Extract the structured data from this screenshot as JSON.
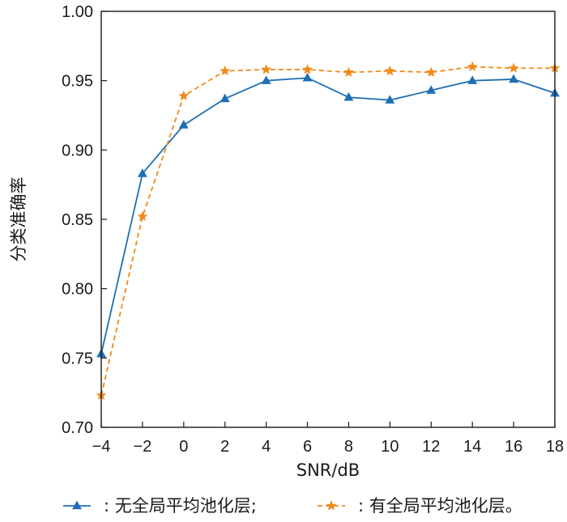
{
  "chart_data": {
    "type": "line",
    "xlabel": "SNR/dB",
    "ylabel": "分类准确率",
    "xlim": [
      -4,
      18
    ],
    "ylim": [
      0.7,
      1.0
    ],
    "x_ticks": [
      -4,
      -2,
      0,
      2,
      4,
      6,
      8,
      10,
      12,
      14,
      16,
      18
    ],
    "x_tick_labels": [
      "−4",
      "−2",
      "0",
      "2",
      "4",
      "6",
      "8",
      "10",
      "12",
      "14",
      "16",
      "18"
    ],
    "y_ticks": [
      0.7,
      0.75,
      0.8,
      0.85,
      0.9,
      0.95,
      1.0
    ],
    "y_tick_labels": [
      "0.70",
      "0.75",
      "0.80",
      "0.85",
      "0.90",
      "0.95",
      "1.00"
    ],
    "grid": false,
    "legend_position": "bottom",
    "x": [
      -4,
      -2,
      0,
      2,
      4,
      6,
      8,
      10,
      12,
      14,
      16,
      18
    ],
    "series": [
      {
        "name": ": 无全局平均池化层;",
        "values": [
          0.753,
          0.883,
          0.918,
          0.937,
          0.95,
          0.952,
          0.938,
          0.936,
          0.943,
          0.95,
          0.951,
          0.941
        ],
        "color": "#1f6fb4",
        "marker": "triangle",
        "line_style": "solid"
      },
      {
        "name": ": 有全局平均池化层。",
        "values": [
          0.723,
          0.852,
          0.939,
          0.957,
          0.958,
          0.958,
          0.956,
          0.957,
          0.956,
          0.96,
          0.959,
          0.959
        ],
        "color": "#f08a1c",
        "marker": "star",
        "line_style": "dashed"
      }
    ]
  }
}
